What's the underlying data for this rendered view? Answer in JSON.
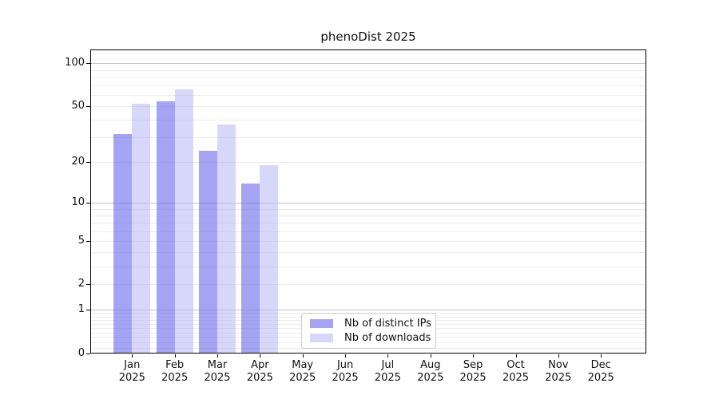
{
  "chart_data": {
    "type": "bar",
    "title": "phenoDist 2025",
    "categories": [
      "Jan",
      "Feb",
      "Mar",
      "Apr",
      "May",
      "Jun",
      "Jul",
      "Aug",
      "Sep",
      "Oct",
      "Nov",
      "Dec"
    ],
    "category_year": "2025",
    "series": [
      {
        "name": "Nb of distinct IPs",
        "values": [
          32,
          54,
          24,
          14,
          0,
          0,
          0,
          0,
          0,
          0,
          0,
          0
        ],
        "swatch_color": "#a4a4f3",
        "fill_rgba": "rgba(108,108,235,0.62)"
      },
      {
        "name": "Nb of downloads",
        "values": [
          52,
          66,
          37,
          19,
          0,
          0,
          0,
          0,
          0,
          0,
          0,
          0
        ],
        "swatch_color": "#d7d7fa",
        "fill_rgba": "rgba(178,178,246,0.52)"
      }
    ],
    "y_axis": {
      "scale": "log1p",
      "tick_values": [
        100,
        50,
        20,
        10,
        5,
        2,
        1,
        0
      ],
      "range": [
        0,
        124
      ],
      "grid": true
    },
    "x_axis": {
      "tick_label_lines": 2
    },
    "legend": {
      "location": "bottom-center",
      "border_color": "#cccccc"
    },
    "grid_colors": {
      "minor": "#ededed",
      "major": "#c4c4c4"
    }
  }
}
